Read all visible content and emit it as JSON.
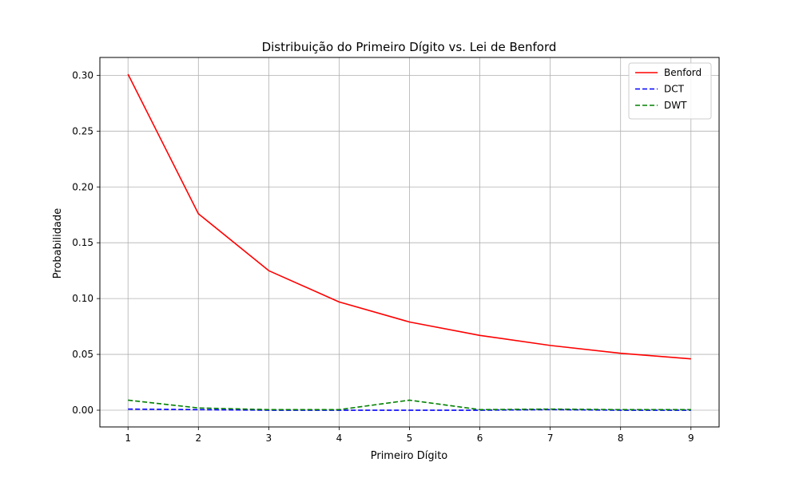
{
  "chart_data": {
    "type": "line",
    "title": "Distribuição do Primeiro Dígito vs. Lei de Benford",
    "xlabel": "Primeiro Dígito",
    "ylabel": "Probabilidade",
    "x": [
      1,
      2,
      3,
      4,
      5,
      6,
      7,
      8,
      9
    ],
    "xticks": [
      "1",
      "2",
      "3",
      "4",
      "5",
      "6",
      "7",
      "8",
      "9"
    ],
    "yticks": [
      "0.00",
      "0.05",
      "0.10",
      "0.15",
      "0.20",
      "0.25",
      "0.30"
    ],
    "xlim": [
      0.6,
      9.4
    ],
    "ylim": [
      -0.015,
      0.316
    ],
    "grid": true,
    "legend_position": "top-right",
    "series": [
      {
        "name": "Benford",
        "color": "#ff0000",
        "style": "solid",
        "values": [
          0.301,
          0.176,
          0.125,
          0.097,
          0.079,
          0.067,
          0.058,
          0.051,
          0.046
        ]
      },
      {
        "name": "DCT",
        "color": "#0000ff",
        "style": "dashed",
        "values": [
          0.001,
          0.0005,
          0.0,
          0.0,
          0.0,
          0.0,
          0.0005,
          0.0,
          0.0
        ]
      },
      {
        "name": "DWT",
        "color": "#008000",
        "style": "dashed",
        "values": [
          0.009,
          0.002,
          0.0005,
          0.0005,
          0.009,
          0.0005,
          0.001,
          0.0005,
          0.0005
        ]
      }
    ]
  }
}
